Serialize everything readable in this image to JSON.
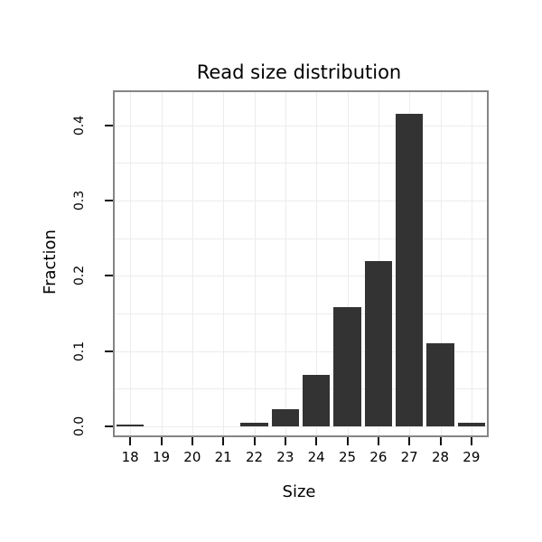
{
  "chart_data": {
    "type": "bar",
    "title": "Read size distribution",
    "xlabel": "Size",
    "ylabel": "Fraction",
    "categories": [
      "18",
      "19",
      "20",
      "21",
      "22",
      "23",
      "24",
      "25",
      "26",
      "27",
      "28",
      "29"
    ],
    "values": [
      0.003,
      0,
      0,
      0,
      0.005,
      0.023,
      0.068,
      0.158,
      0.22,
      0.415,
      0.11,
      0.005
    ],
    "y_ticks": [
      0.0,
      0.1,
      0.2,
      0.3,
      0.4
    ],
    "y_tick_labels": [
      "0.0",
      "0.1",
      "0.2",
      "0.3",
      "0.4"
    ],
    "ylim": [
      -0.012,
      0.444
    ],
    "grid": true,
    "grid_minor_step": 0.05,
    "legend": "none",
    "bar_color": "#333333",
    "plot_border_color": "#858585",
    "grid_color": "#ececec"
  }
}
